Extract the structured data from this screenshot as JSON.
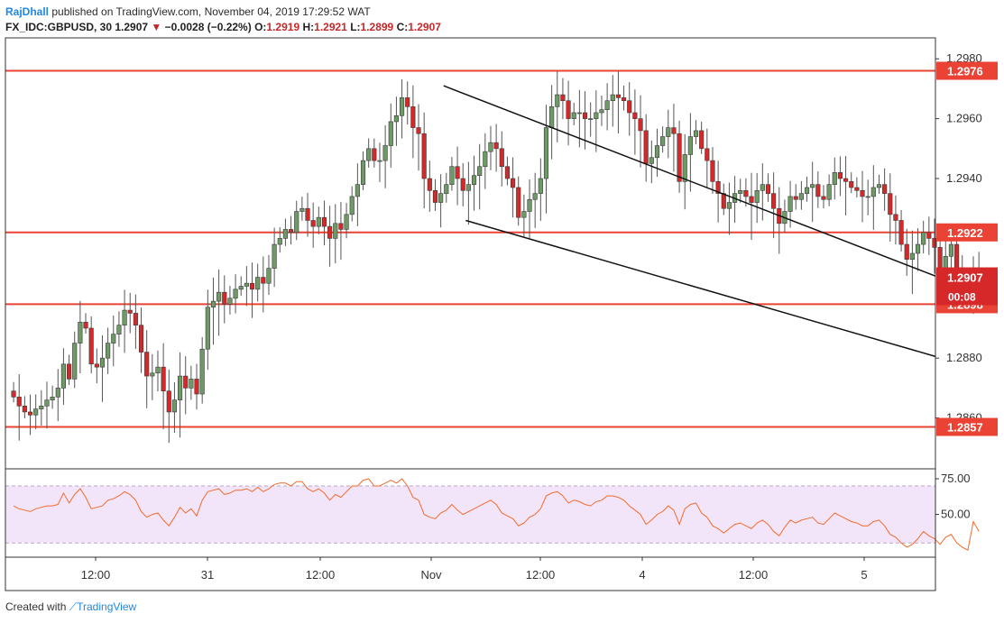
{
  "header": {
    "user": "RajDhall",
    "published": " published on TradingView.com, November 04, 2019 17:29:52 WAT",
    "symbol": "FX_IDC:GBPUSD, 30",
    "last": "1.2907",
    "change_arrow": "▼",
    "change": "−0.0028 (−0.22%)",
    "o_label": "O:",
    "o": "1.2919",
    "h_label": "H:",
    "h": "1.2921",
    "l_label": "L:",
    "l": "1.2899",
    "c_label": "C:",
    "c": "1.2907"
  },
  "footer": {
    "created_with": "Created with",
    "brand": "TradingView"
  },
  "colors": {
    "up": "#6e9a66",
    "down": "#d62828",
    "level": "#ea4335",
    "rsi_line": "#f26b2b",
    "rsi_band": "#f3e5f9",
    "axis": "#333333"
  },
  "chart_data": {
    "type": "candlestick",
    "price_range": [
      1.2843,
      1.2987
    ],
    "price_ticks": [
      "1.2980",
      "1.2960",
      "1.2940",
      "1.2880",
      "1.2860"
    ],
    "levels": [
      {
        "label": "1.2976",
        "value": 1.2976
      },
      {
        "label": "1.2922",
        "value": 1.2922
      },
      {
        "label": "1.2898",
        "value": 1.2898
      },
      {
        "label": "1.2857",
        "value": 1.2857
      }
    ],
    "current": {
      "label": "1.2907",
      "value": 1.2907,
      "countdown": "00:08"
    },
    "x_labels": [
      "12:00",
      "31",
      "12:00",
      "Nov",
      "12:00",
      "4",
      "12:00",
      "5"
    ],
    "trendlines": [
      {
        "from": [
          78,
          1.2971
        ],
        "to": [
          177,
          1.29
        ]
      },
      {
        "from": [
          82,
          1.2926
        ],
        "to": [
          177,
          1.2875
        ]
      }
    ],
    "closes": [
      1.2867,
      1.2864,
      1.2862,
      1.2861,
      1.2863,
      1.2864,
      1.2866,
      1.2867,
      1.287,
      1.2878,
      1.2873,
      1.2885,
      1.2892,
      1.289,
      1.2878,
      1.2877,
      1.288,
      1.2885,
      1.2888,
      1.2891,
      1.2896,
      1.2895,
      1.2891,
      1.2882,
      1.2874,
      1.2875,
      1.2877,
      1.2869,
      1.2862,
      1.2866,
      1.2874,
      1.287,
      1.2873,
      1.2868,
      1.2883,
      1.2897,
      1.2899,
      1.2902,
      1.2898,
      1.29,
      1.2903,
      1.2904,
      1.2905,
      1.2903,
      1.2907,
      1.2905,
      1.291,
      1.2918,
      1.292,
      1.2923,
      1.2922,
      1.2929,
      1.293,
      1.2926,
      1.2924,
      1.2927,
      1.2924,
      1.292,
      1.2925,
      1.2923,
      1.2928,
      1.2934,
      1.2938,
      1.2946,
      1.295,
      1.2946,
      1.2946,
      1.2951,
      1.2959,
      1.2961,
      1.2967,
      1.2964,
      1.2957,
      1.2955,
      1.294,
      1.2936,
      1.2932,
      1.2935,
      1.2938,
      1.2944,
      1.294,
      1.2936,
      1.2938,
      1.2941,
      1.2944,
      1.2949,
      1.2952,
      1.295,
      1.2944,
      1.294,
      1.2937,
      1.2927,
      1.2929,
      1.2933,
      1.2935,
      1.294,
      1.2957,
      1.2964,
      1.2968,
      1.2966,
      1.296,
      1.2962,
      1.2962,
      1.296,
      1.296,
      1.2962,
      1.2963,
      1.2966,
      1.2968,
      1.2967,
      1.2966,
      1.2962,
      1.296,
      1.2956,
      1.2945,
      1.2947,
      1.2951,
      1.2954,
      1.2957,
      1.2955,
      1.2939,
      1.2948,
      1.2954,
      1.2956,
      1.295,
      1.2946,
      1.2939,
      1.2935,
      1.293,
      1.2932,
      1.2935,
      1.2936,
      1.2934,
      1.2932,
      1.2936,
      1.2938,
      1.2935,
      1.293,
      1.2925,
      1.2929,
      1.2934,
      1.2933,
      1.2935,
      1.2937,
      1.2938,
      1.2934,
      1.2933,
      1.2938,
      1.2942,
      1.294,
      1.2939,
      1.2937,
      1.2936,
      1.2934,
      1.2934,
      1.2937,
      1.2938,
      1.2935,
      1.2928,
      1.2926,
      1.2918,
      1.2913,
      1.2915,
      1.2918,
      1.2922,
      1.292,
      1.2917,
      1.291,
      1.2914,
      1.2918,
      1.291,
      1.2903,
      1.2898,
      1.291,
      1.2907
    ],
    "rsi": {
      "levels": [
        "75.00",
        "50.00"
      ],
      "band": [
        70,
        30
      ],
      "range": [
        20,
        82
      ],
      "values": [
        56,
        54,
        53,
        52,
        54,
        55,
        56,
        56,
        57,
        65,
        58,
        64,
        68,
        62,
        54,
        55,
        56,
        60,
        61,
        63,
        66,
        64,
        60,
        52,
        48,
        50,
        51,
        46,
        42,
        48,
        55,
        51,
        54,
        49,
        60,
        66,
        67,
        68,
        64,
        65,
        67,
        67,
        68,
        66,
        69,
        66,
        68,
        71,
        72,
        72,
        70,
        73,
        73,
        68,
        66,
        68,
        65,
        60,
        64,
        62,
        66,
        70,
        70,
        74,
        75,
        70,
        70,
        72,
        74,
        72,
        75,
        70,
        62,
        60,
        50,
        48,
        47,
        51,
        53,
        57,
        53,
        50,
        52,
        54,
        56,
        58,
        60,
        57,
        51,
        49,
        47,
        42,
        44,
        48,
        50,
        54,
        63,
        65,
        66,
        63,
        58,
        60,
        59,
        57,
        56,
        59,
        60,
        63,
        63,
        62,
        60,
        56,
        53,
        50,
        43,
        46,
        50,
        52,
        56,
        53,
        43,
        54,
        57,
        58,
        51,
        48,
        42,
        40,
        37,
        40,
        43,
        44,
        42,
        40,
        44,
        46,
        43,
        38,
        35,
        41,
        46,
        44,
        46,
        47,
        48,
        44,
        43,
        47,
        51,
        49,
        47,
        45,
        44,
        42,
        42,
        45,
        46,
        42,
        36,
        34,
        30,
        27,
        29,
        33,
        38,
        35,
        33,
        29,
        34,
        36,
        30,
        27,
        25,
        45,
        38
      ]
    }
  }
}
